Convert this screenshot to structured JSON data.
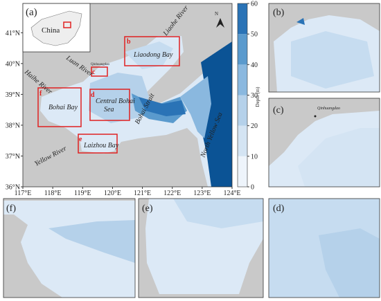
{
  "main_map": {
    "panel_label": "(a)",
    "inset_label": "China",
    "north_label": "N",
    "regions": [
      {
        "letter": "b",
        "name": "Liaodong Bay"
      },
      {
        "letter": "c",
        "name": "Qinhuangdao"
      },
      {
        "letter": "d",
        "name_lines": [
          "Central Bohai",
          "Sea"
        ]
      },
      {
        "letter": "e",
        "name": "Laizhou Bay"
      },
      {
        "letter": "f",
        "name": "Bohai Bay"
      }
    ],
    "rivers": [
      "Liaohe River",
      "Luan River",
      "Haihe River",
      "Yellow River"
    ],
    "sea_labels": [
      "Bohai Strait",
      "North Yellow Sea"
    ],
    "lonlim": [
      117,
      124
    ],
    "latlim": [
      36,
      41.95
    ],
    "lon_ticks": [
      {
        "value": 117,
        "label": "117°E"
      },
      {
        "value": 118,
        "label": "118°E"
      },
      {
        "value": 119,
        "label": "119°E"
      },
      {
        "value": 120,
        "label": "120°E"
      },
      {
        "value": 121,
        "label": "121°E"
      },
      {
        "value": 122,
        "label": "122°E"
      },
      {
        "value": 123,
        "label": "123°E"
      },
      {
        "value": 124,
        "label": "124°E"
      }
    ],
    "lat_ticks": [
      {
        "value": 36,
        "label": "36°N"
      },
      {
        "value": 37,
        "label": "37°N"
      },
      {
        "value": 38,
        "label": "38°N"
      },
      {
        "value": 39,
        "label": "39°N"
      },
      {
        "value": 40,
        "label": "40°N"
      },
      {
        "value": 41,
        "label": "41°N"
      }
    ]
  },
  "colorbar": {
    "label": "Depth (m)",
    "lim": [
      0,
      60
    ],
    "ticks": [
      0,
      10,
      20,
      30,
      40,
      50,
      60
    ],
    "colors": [
      "#eef4fb",
      "#d4e4f3",
      "#b5d1ea",
      "#8ab8df",
      "#5a9acd",
      "#2a73b6"
    ]
  },
  "panels": [
    {
      "label": "(b)"
    },
    {
      "label": "(c)",
      "place": "Qinhuangdao"
    },
    {
      "label": "(f)"
    },
    {
      "label": "(e)"
    },
    {
      "label": "(d)"
    }
  ]
}
